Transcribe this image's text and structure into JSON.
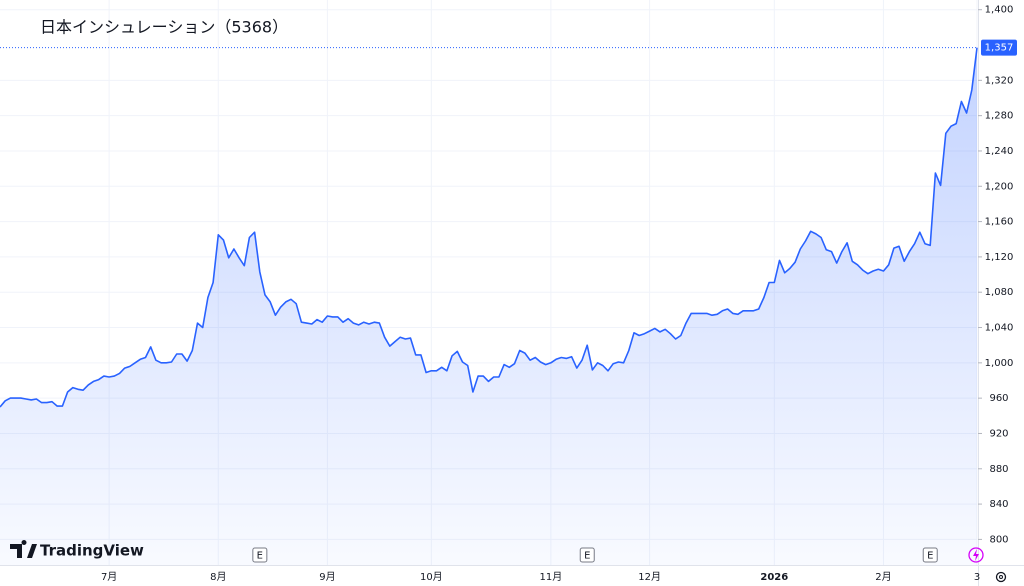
{
  "chart_data": {
    "type": "area",
    "title": "日本インシュレーション（5368）",
    "branding": "TradingView",
    "color": "#2962ff",
    "categories": [
      null,
      null,
      null,
      null,
      null,
      null,
      null,
      null,
      null,
      null,
      null,
      null,
      null,
      null,
      null,
      null,
      null,
      null,
      null,
      null,
      null,
      "7月",
      null,
      null,
      null,
      null,
      null,
      null,
      null,
      null,
      null,
      null,
      null,
      null,
      null,
      null,
      null,
      null,
      null,
      null,
      null,
      null,
      "8月",
      null,
      null,
      null,
      null,
      null,
      null,
      null,
      null,
      null,
      null,
      null,
      null,
      null,
      null,
      null,
      null,
      null,
      null,
      null,
      null,
      "9月",
      null,
      null,
      null,
      null,
      null,
      null,
      null,
      null,
      null,
      null,
      null,
      null,
      null,
      null,
      null,
      null,
      null,
      null,
      null,
      "10月",
      null,
      null,
      null,
      null,
      null,
      null,
      null,
      null,
      null,
      null,
      null,
      null,
      null,
      null,
      null,
      null,
      null,
      null,
      null,
      null,
      null,
      null,
      "11月",
      null,
      null,
      null,
      null,
      null,
      null,
      null,
      null,
      null,
      null,
      null,
      null,
      null,
      null,
      null,
      null,
      null,
      null,
      "12月",
      null,
      null,
      null,
      null,
      null,
      null,
      null,
      null,
      null,
      null,
      null,
      null,
      null,
      null,
      null,
      null,
      null,
      null,
      null,
      null,
      null,
      null,
      null,
      "2026",
      null,
      null,
      null,
      null,
      null,
      null,
      null,
      null,
      null,
      null,
      null,
      null,
      null,
      null,
      null,
      null,
      null,
      null,
      null,
      null,
      "2月",
      null,
      null,
      null,
      null,
      null,
      null,
      null,
      null,
      null,
      null,
      null,
      null,
      null,
      null,
      null,
      null,
      null,
      "3"
    ],
    "values": [
      950,
      957,
      960,
      960,
      960,
      959,
      958,
      959,
      955,
      955,
      956,
      951,
      951,
      967,
      972,
      970,
      969,
      975,
      979,
      981,
      985,
      984,
      985,
      988,
      994,
      996,
      1000,
      1004,
      1006,
      1018,
      1003,
      1000,
      1000,
      1001,
      1010,
      1010,
      1002,
      1014,
      1045,
      1040,
      1074,
      1091,
      1145,
      1139,
      1119,
      1129,
      1119,
      1110,
      1142,
      1148,
      1103,
      1077,
      1069,
      1054,
      1063,
      1069,
      1072,
      1067,
      1046,
      1045,
      1044,
      1049,
      1046,
      1053,
      1052,
      1052,
      1046,
      1050,
      1045,
      1043,
      1046,
      1044,
      1046,
      1045,
      1029,
      1019,
      1024,
      1029,
      1027,
      1028,
      1009,
      1009,
      989,
      991,
      991,
      995,
      991,
      1008,
      1013,
      1001,
      997,
      967,
      985,
      985,
      979,
      984,
      984,
      998,
      995,
      999,
      1014,
      1011,
      1003,
      1006,
      1001,
      998,
      1000,
      1004,
      1006,
      1005,
      1007,
      994,
      1003,
      1020,
      992,
      1000,
      997,
      991,
      999,
      1001,
      1000,
      1014,
      1034,
      1031,
      1033,
      1036,
      1039,
      1035,
      1038,
      1033,
      1027,
      1031,
      1045,
      1056,
      1056,
      1056,
      1056,
      1054,
      1055,
      1059,
      1061,
      1056,
      1055,
      1059,
      1059,
      1059,
      1061,
      1074,
      1091,
      1091,
      1116,
      1102,
      1107,
      1114,
      1129,
      1138,
      1149,
      1146,
      1142,
      1128,
      1126,
      1113,
      1126,
      1136,
      1115,
      1111,
      1105,
      1101,
      1104,
      1106,
      1104,
      1111,
      1130,
      1132,
      1115,
      1126,
      1135,
      1148,
      1135,
      1133,
      1215,
      1201,
      1260,
      1268,
      1271,
      1296,
      1283,
      1309,
      1357
    ],
    "last_price": {
      "value": 1357,
      "label": "1,357"
    },
    "events": [
      {
        "index": 50,
        "label": "E"
      },
      {
        "index": 113,
        "label": "E"
      },
      {
        "index": 179,
        "label": "E"
      }
    ],
    "ylim": [
      771,
      1411
    ],
    "yticks": [
      800,
      840,
      880,
      920,
      960,
      {
        "value": 1000,
        "label": "1,000"
      },
      {
        "value": 1040,
        "label": "1,040"
      },
      {
        "value": 1080,
        "label": "1,080"
      },
      {
        "value": 1120,
        "label": "1,120"
      },
      {
        "value": 1160,
        "label": "1,160"
      },
      {
        "value": 1200,
        "label": "1,200"
      },
      {
        "value": 1240,
        "label": "1,240"
      },
      {
        "value": 1280,
        "label": "1,280"
      },
      {
        "value": 1320,
        "label": "1,320"
      },
      {
        "value": 1400,
        "label": "1,400"
      }
    ],
    "grid": true
  }
}
